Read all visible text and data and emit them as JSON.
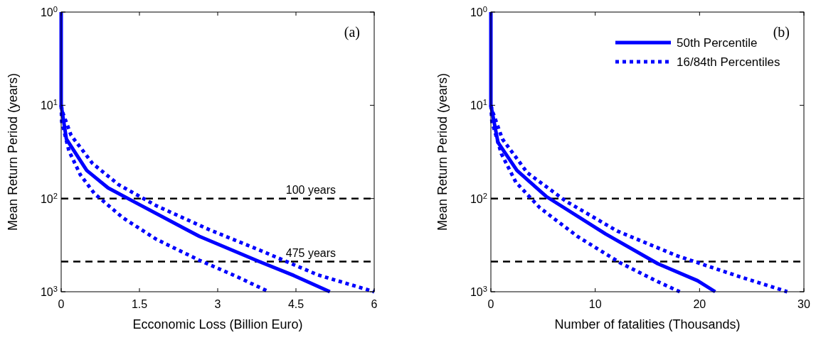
{
  "chart_data": [
    {
      "type": "line",
      "xlabel": "Ecconomic Loss (Billion Euro)",
      "ylabel": "Mean Return Period (years)",
      "log": "y",
      "xlim": [
        0,
        6
      ],
      "xticks": [
        0,
        1.5,
        3,
        4.5,
        6
      ],
      "ylim": [
        1000,
        1
      ],
      "yticks": [
        {
          "value": 1,
          "label": "10$^{0}$"
        },
        {
          "value": 10,
          "label": "10$^{1}$"
        },
        {
          "value": 100,
          "label": "10$^{2}$"
        },
        {
          "value": 1000,
          "label": "10$^{3}$"
        }
      ],
      "grid": false,
      "legend": false,
      "annotations": [
        "(a)"
      ],
      "ref_lines": [
        {
          "axis": "y",
          "value": 100,
          "label": "100 years",
          "color": "#000000",
          "line_style": "dashed"
        },
        {
          "axis": "y",
          "value": 475,
          "label": "475 years",
          "color": "#000000",
          "line_style": "dashed"
        }
      ],
      "series": [
        {
          "color": "#0000ff",
          "line_style": "solid",
          "x": [
            0,
            0,
            0.1,
            0.49,
            0.9,
            1.42,
            2.65,
            3.78,
            4.46,
            5.15
          ],
          "values": [
            1,
            10,
            23,
            50,
            77,
            110,
            255,
            470,
            670,
            1000
          ]
        },
        {
          "color": "#0000ff",
          "line_style": "dotted",
          "x": [
            0,
            0.03,
            0.19,
            0.6,
            1.1,
            1.83,
            2.83,
            3.83,
            4.92,
            6
          ],
          "values": [
            10,
            12,
            21,
            42,
            71,
            120,
            215,
            363,
            660,
            1000
          ]
        },
        {
          "color": "#0000ff",
          "line_style": "dotted",
          "x": [
            0,
            0.01,
            0.15,
            0.37,
            0.64,
            1.19,
            1.83,
            2.65,
            3.37,
            3.98
          ],
          "values": [
            10,
            15,
            31,
            56,
            89,
            162,
            275,
            460,
            690,
            1000
          ]
        }
      ]
    },
    {
      "type": "line",
      "xlabel": "Number of fatalities (Thousands)",
      "ylabel": "Mean Return Period (years)",
      "log": "y",
      "xlim": [
        0,
        30
      ],
      "xticks": [
        0,
        10,
        20,
        30
      ],
      "ylim": [
        1000,
        1
      ],
      "yticks": [
        {
          "value": 1,
          "label": "10$^{0}$"
        },
        {
          "value": 10,
          "label": "10$^{1}$"
        },
        {
          "value": 100,
          "label": "10$^{2}$"
        },
        {
          "value": 1000,
          "label": "10$^{3}$"
        }
      ],
      "grid": false,
      "legend": "top right",
      "annotations": [
        "(b)"
      ],
      "ref_lines": [
        {
          "axis": "y",
          "value": 100,
          "color": "#000000",
          "line_style": "dashed"
        },
        {
          "axis": "y",
          "value": 475,
          "color": "#000000",
          "line_style": "dashed"
        }
      ],
      "series": [
        {
          "name": "50th Percentile",
          "color": "#0000ff",
          "line_style": "solid",
          "x": [
            0,
            0,
            0.68,
            2.5,
            5.3,
            11.0,
            16.0,
            19.8,
            21.5
          ],
          "values": [
            1,
            10,
            25,
            50,
            95,
            240,
            500,
            760,
            1000
          ]
        },
        {
          "name": "16/84th Percentiles",
          "color": "#0000ff",
          "line_style": "dotted",
          "x": [
            0,
            0.2,
            1.1,
            3.5,
            7.2,
            12.1,
            17.8,
            23.5,
            28.4
          ],
          "values": [
            10,
            12,
            23,
            53,
            107,
            223,
            410,
            670,
            1000
          ]
        },
        {
          "color": "#0000ff",
          "line_style": "dotted",
          "x": [
            0,
            0.1,
            1.0,
            2.4,
            4.7,
            8.3,
            12.4,
            16,
            18.1
          ],
          "values": [
            10,
            15,
            33,
            67,
            126,
            255,
            490,
            780,
            1000
          ]
        }
      ]
    }
  ]
}
